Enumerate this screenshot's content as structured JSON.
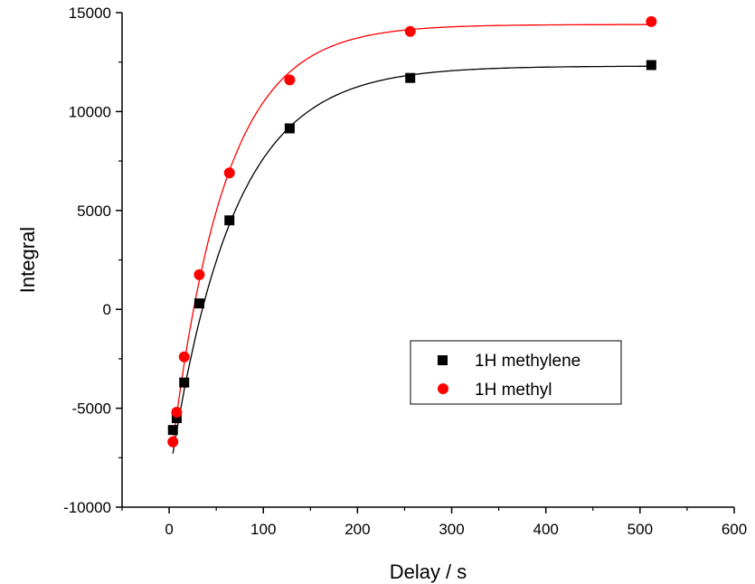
{
  "chart_data": {
    "type": "scatter",
    "title": "",
    "xlabel": "Delay / s",
    "ylabel": "Integral",
    "xlim": [
      -50,
      600
    ],
    "ylim": [
      -10000,
      15000
    ],
    "x_ticks": [
      0,
      100,
      200,
      300,
      400,
      500,
      600
    ],
    "y_ticks": [
      -10000,
      -5000,
      0,
      5000,
      10000,
      15000
    ],
    "x_tick_labels": [
      "0",
      "100",
      "200",
      "300",
      "400",
      "500",
      "600"
    ],
    "y_tick_labels": [
      "-10000",
      "-5000",
      "0",
      "5000",
      "10000",
      "15000"
    ],
    "grid": false,
    "legend_position": "middle-right",
    "series": [
      {
        "name": "1H methylene",
        "marker": "square",
        "color": "#000000",
        "x": [
          4,
          8,
          16,
          32,
          64,
          128,
          256,
          512
        ],
        "y": [
          -6100,
          -5500,
          -3700,
          300,
          4500,
          9150,
          11700,
          12350
        ],
        "fit": {
          "model": "exponential-recovery",
          "color": "#000000",
          "y_inf": 12300,
          "y_0": -8500,
          "T1": 67
        }
      },
      {
        "name": "1H methyl",
        "marker": "circle",
        "color": "#ff0000",
        "x": [
          4,
          8,
          16,
          32,
          64,
          128,
          256,
          512
        ],
        "y": [
          -6700,
          -5200,
          -2400,
          1750,
          6900,
          11600,
          14050,
          14550
        ],
        "fit": {
          "model": "exponential-recovery",
          "color": "#ff0000",
          "y_inf": 14400,
          "y_0": -8300,
          "T1": 57
        }
      }
    ]
  }
}
